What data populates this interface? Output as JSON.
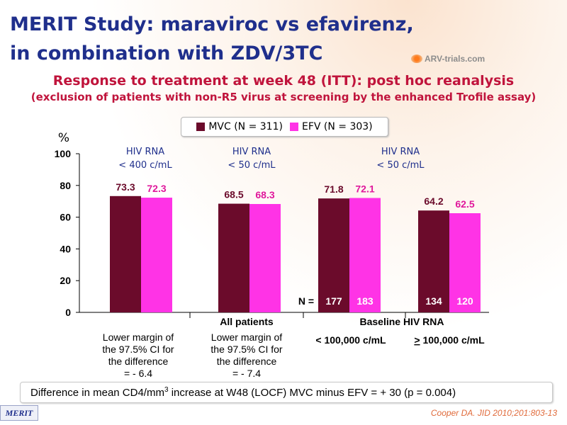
{
  "header": {
    "title_line1": "MERIT Study: maraviroc vs efavirenz,",
    "title_line2": "in combination with ZDV/3TC",
    "logo_text": "ARV-trials.com"
  },
  "subtitle": {
    "main": "Response to treatment at week 48 (ITT): post hoc reanalysis",
    "sub": "(exclusion of patients with non-R5 virus at screening by the enhanced Trofile assay)"
  },
  "footer": {
    "cd4_text_before": "Difference in mean CD4/mm",
    "cd4_sup": "3",
    "cd4_text_after": " increase at W48 (LOCF) MVC minus EFV = + 30  (p = 0.004)",
    "badge": "MERIT",
    "citation": "Cooper DA. JID 2010;201:803-13"
  },
  "colors": {
    "mvc": "#6b0b2b",
    "efv": "#ff33e6",
    "value_mvc": "#6b0b2b",
    "value_efv": "#e0189c",
    "group_header": "#1f2f8c"
  },
  "chart_data": {
    "type": "bar",
    "ylabel": "%",
    "ylim": [
      0,
      100
    ],
    "yticks": [
      0,
      20,
      40,
      60,
      80,
      100
    ],
    "series": [
      {
        "name": "MVC (N = 311)",
        "values": [
          73.3,
          68.5,
          71.8,
          64.2
        ]
      },
      {
        "name": "EFV (N = 303)",
        "values": [
          72.3,
          68.3,
          72.1,
          62.5
        ]
      }
    ],
    "value_labels": {
      "mvc": [
        "73.3",
        "68.5",
        "71.8",
        "64.2"
      ],
      "efv": [
        "72.3",
        "68.3",
        "72.1",
        "62.5"
      ]
    },
    "group_headers": [
      {
        "line1": "HIV RNA",
        "line2": "< 400 c/mL"
      },
      {
        "line1": "HIV RNA",
        "line2": "< 50 c/mL"
      },
      {
        "line1": "HIV RNA",
        "line2": "< 50 c/mL"
      }
    ],
    "n_prefix": "N =",
    "n_labels": {
      "mvc": [
        "177",
        "134"
      ],
      "efv": [
        "183",
        "120"
      ]
    },
    "category_labels": {
      "all_patients": "All patients",
      "baseline": "Baseline HIV RNA",
      "low": "< 100,000 c/mL",
      "high_symbol": ">",
      "high_rest": " 100,000 c/mL"
    },
    "margins": [
      {
        "l1": "Lower margin of",
        "l2": "the 97.5% CI for",
        "l3": "the difference",
        "l4": "= - 6.4"
      },
      {
        "l1": "Lower margin of",
        "l2": "the 97.5% CI for",
        "l3": "the difference",
        "l4": "= - 7.4"
      }
    ]
  }
}
